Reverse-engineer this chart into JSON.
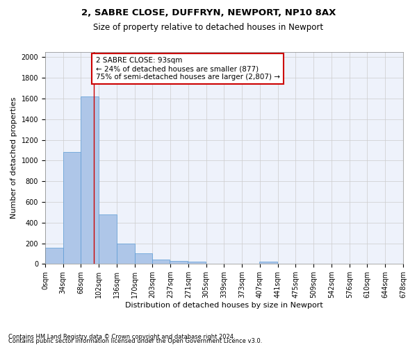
{
  "title1": "2, SABRE CLOSE, DUFFRYN, NEWPORT, NP10 8AX",
  "title2": "Size of property relative to detached houses in Newport",
  "xlabel": "Distribution of detached houses by size in Newport",
  "ylabel": "Number of detached properties",
  "footnote1": "Contains HM Land Registry data © Crown copyright and database right 2024.",
  "footnote2": "Contains public sector information licensed under the Open Government Licence v3.0.",
  "bar_left_edges": [
    0,
    34,
    68,
    102,
    136,
    170,
    203,
    237,
    271,
    305,
    339,
    373,
    407,
    441,
    475,
    509,
    542,
    576,
    610,
    644
  ],
  "bar_heights": [
    160,
    1080,
    1620,
    480,
    200,
    100,
    45,
    30,
    20,
    0,
    0,
    0,
    20,
    0,
    0,
    0,
    0,
    0,
    0,
    0
  ],
  "bin_width": 34,
  "bar_color": "#aec6e8",
  "bar_edge_color": "#5b9bd5",
  "x_tick_labels": [
    "0sqm",
    "34sqm",
    "68sqm",
    "102sqm",
    "136sqm",
    "170sqm",
    "203sqm",
    "237sqm",
    "271sqm",
    "305sqm",
    "339sqm",
    "373sqm",
    "407sqm",
    "441sqm",
    "475sqm",
    "509sqm",
    "542sqm",
    "576sqm",
    "610sqm",
    "644sqm",
    "678sqm"
  ],
  "ylim": [
    0,
    2050
  ],
  "yticks": [
    0,
    200,
    400,
    600,
    800,
    1000,
    1200,
    1400,
    1600,
    1800,
    2000
  ],
  "vline_x": 93,
  "vline_color": "#cc0000",
  "annotation_text": "2 SABRE CLOSE: 93sqm\n← 24% of detached houses are smaller (877)\n75% of semi-detached houses are larger (2,807) →",
  "annotation_box_color": "#ffffff",
  "annotation_box_edge_color": "#cc0000",
  "bg_color": "#eef2fb",
  "grid_color": "#cccccc",
  "title1_fontsize": 9.5,
  "title2_fontsize": 8.5,
  "axis_label_fontsize": 8,
  "tick_fontsize": 7,
  "annotation_fontsize": 7.5,
  "footnote_fontsize": 6
}
